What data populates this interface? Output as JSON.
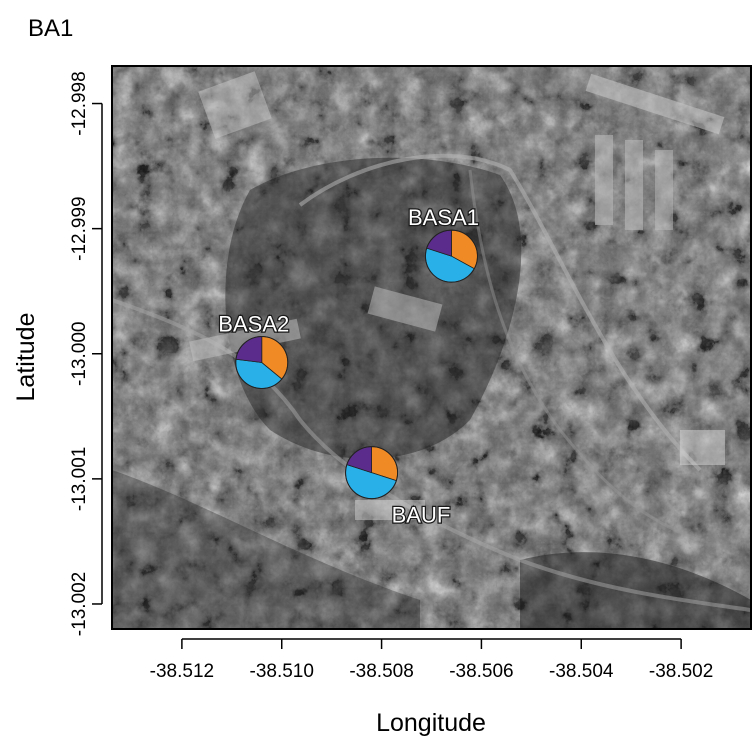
{
  "figure_title": "BA1",
  "chart_data": {
    "type": "map",
    "xlabel": "Longitude",
    "ylabel": "Latitude",
    "xlim": [
      -38.5134,
      -38.5006
    ],
    "ylim": [
      -13.0022,
      -12.9977
    ],
    "x_ticks": [
      -38.512,
      -38.51,
      -38.508,
      -38.506,
      -38.504,
      -38.502
    ],
    "x_tick_labels": [
      "-38.512",
      "-38.510",
      "-38.508",
      "-38.506",
      "-38.504",
      "-38.502"
    ],
    "y_ticks": [
      -12.998,
      -12.999,
      -13.0,
      -13.001,
      -13.002
    ],
    "y_tick_labels": [
      "-12.998",
      "-12.999",
      "-13.000",
      "-13.001",
      "-13.002"
    ],
    "background": "satellite-image-grayscale",
    "grid": false,
    "slice_colors": [
      "#f08a24",
      "#29b0e8",
      "#5b2c8c"
    ],
    "sites": [
      {
        "name": "BASA1",
        "lon": -38.5066,
        "lat": -12.99922,
        "slices": [
          0.33,
          0.47,
          0.2
        ],
        "label_position": "above-left"
      },
      {
        "name": "BASA2",
        "lon": -38.5104,
        "lat": -13.00007,
        "slices": [
          0.36,
          0.41,
          0.23
        ],
        "label_position": "above-left"
      },
      {
        "name": "BAUF",
        "lon": -38.5082,
        "lat": -13.00095,
        "slices": [
          0.3,
          0.5,
          0.2
        ],
        "label_position": "below-right"
      }
    ]
  }
}
